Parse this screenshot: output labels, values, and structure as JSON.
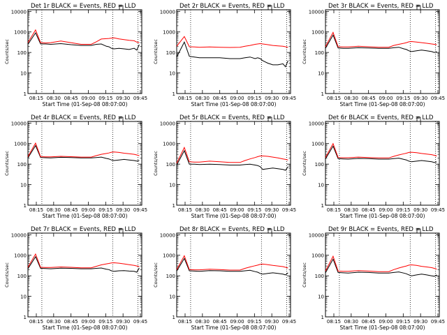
{
  "figure": {
    "xlabel": "Start Time (01-Sep-08 08:07:00)",
    "ylabel": "Counts/sec"
  },
  "colors": {
    "events": "#000000",
    "lld": "#ff0000",
    "axis": "#000000"
  },
  "chart_data": [
    {
      "type": "line",
      "title": "Det 1r BLACK = Events, RED = LLD",
      "xlabel": "Start Time (01-Sep-08 08:07:00)",
      "ylabel": "Counts/sec",
      "yscale": "log",
      "ylim": [
        1,
        12000
      ],
      "yticks": [
        "1",
        "10",
        "100",
        "1000",
        "10000"
      ],
      "xlim": [
        487,
        532
      ],
      "xticks": [
        "08:15",
        "08:30",
        "08:45",
        "09:00",
        "09:15",
        "09:30",
        "09:45"
      ],
      "x": [
        487,
        490,
        492,
        494,
        496,
        500,
        504,
        508,
        512,
        514,
        516,
        518,
        519,
        520,
        521,
        523,
        525,
        527,
        529,
        530,
        531
      ],
      "series": [
        {
          "name": "Events",
          "values": [
            250,
            900,
            260,
            260,
            250,
            270,
            240,
            220,
            220,
            250,
            260,
            200,
            190,
            160,
            150,
            160,
            150,
            140,
            160,
            130,
            240
          ]
        },
        {
          "name": "LLD",
          "values": [
            300,
            1250,
            300,
            290,
            300,
            360,
            300,
            250,
            250,
            330,
            450,
            470,
            480,
            500,
            510,
            460,
            420,
            390,
            370,
            320,
            300
          ]
        }
      ],
      "vlines": [
        492.5,
        520.5,
        530.5
      ]
    },
    {
      "type": "line",
      "title": "Det 2r BLACK = Events, RED = LLD",
      "xlabel": "Start Time (01-Sep-08 08:07:00)",
      "ylabel": "Counts/sec",
      "yscale": "log",
      "ylim": [
        1,
        12000
      ],
      "yticks": [
        "1",
        "10",
        "100",
        "1000",
        "10000"
      ],
      "xlim": [
        487,
        532
      ],
      "xticks": [
        "08:15",
        "08:30",
        "08:45",
        "09:00",
        "09:15",
        "09:30",
        "09:45"
      ],
      "x": [
        487,
        490,
        492,
        494,
        496,
        500,
        504,
        508,
        512,
        514,
        516,
        518,
        519,
        520,
        521,
        523,
        525,
        527,
        529,
        530,
        531
      ],
      "series": [
        {
          "name": "Events",
          "values": [
            60,
            320,
            65,
            60,
            55,
            55,
            55,
            50,
            50,
            55,
            60,
            50,
            55,
            50,
            40,
            30,
            25,
            25,
            28,
            20,
            40
          ]
        },
        {
          "name": "LLD",
          "values": [
            200,
            600,
            190,
            185,
            180,
            185,
            180,
            175,
            180,
            200,
            220,
            250,
            260,
            270,
            260,
            240,
            220,
            210,
            200,
            190,
            180
          ]
        }
      ],
      "vlines": [
        492.5,
        520.5,
        530.5
      ]
    },
    {
      "type": "line",
      "title": "Det 3r BLACK = Events, RED = LLD",
      "xlabel": "Start Time (01-Sep-08 08:07:00)",
      "ylabel": "Counts/sec",
      "yscale": "log",
      "ylim": [
        1,
        12000
      ],
      "yticks": [
        "1",
        "10",
        "100",
        "1000",
        "10000"
      ],
      "xlim": [
        487,
        532
      ],
      "xticks": [
        "08:15",
        "08:30",
        "08:45",
        "09:00",
        "09:15",
        "09:30",
        "09:45"
      ],
      "x": [
        487,
        490,
        492,
        494,
        496,
        500,
        504,
        508,
        512,
        514,
        516,
        518,
        519,
        520,
        521,
        523,
        525,
        527,
        529,
        530,
        531
      ],
      "series": [
        {
          "name": "Events",
          "values": [
            160,
            700,
            165,
            160,
            160,
            170,
            165,
            160,
            160,
            170,
            180,
            150,
            140,
            120,
            110,
            120,
            130,
            120,
            110,
            100,
            110
          ]
        },
        {
          "name": "LLD",
          "values": [
            190,
            950,
            190,
            185,
            185,
            200,
            190,
            180,
            180,
            220,
            250,
            280,
            300,
            330,
            340,
            320,
            300,
            280,
            260,
            250,
            240
          ]
        }
      ],
      "vlines": [
        492.5,
        520.5,
        530.5
      ]
    },
    {
      "type": "line",
      "title": "Det 4r BLACK = Events, RED = LLD",
      "xlabel": "Start Time (01-Sep-08 08:07:00)",
      "ylabel": "Counts/sec",
      "yscale": "log",
      "ylim": [
        1,
        12000
      ],
      "yticks": [
        "1",
        "10",
        "100",
        "1000",
        "10000"
      ],
      "xlim": [
        487,
        532
      ],
      "xticks": [
        "08:15",
        "08:30",
        "08:45",
        "09:00",
        "09:15",
        "09:30",
        "09:45"
      ],
      "x": [
        487,
        490,
        492,
        494,
        496,
        500,
        504,
        508,
        512,
        514,
        516,
        518,
        519,
        520,
        521,
        523,
        525,
        527,
        529,
        530,
        531
      ],
      "series": [
        {
          "name": "Events",
          "values": [
            200,
            800,
            210,
            205,
            200,
            215,
            210,
            200,
            200,
            210,
            220,
            190,
            180,
            160,
            150,
            160,
            170,
            160,
            150,
            140,
            150
          ]
        },
        {
          "name": "LLD",
          "values": [
            230,
            1050,
            230,
            225,
            225,
            240,
            230,
            220,
            220,
            260,
            300,
            330,
            350,
            380,
            390,
            370,
            340,
            320,
            300,
            280,
            260
          ]
        }
      ],
      "vlines": [
        492.5,
        520.5,
        530.5
      ]
    },
    {
      "type": "line",
      "title": "Det 5r BLACK = Events, RED = LLD",
      "xlabel": "Start Time (01-Sep-08 08:07:00)",
      "ylabel": "Counts/sec",
      "yscale": "log",
      "ylim": [
        1,
        12000
      ],
      "yticks": [
        "1",
        "10",
        "100",
        "1000",
        "10000"
      ],
      "xlim": [
        487,
        532
      ],
      "xticks": [
        "08:15",
        "08:30",
        "08:45",
        "09:00",
        "09:15",
        "09:30",
        "09:45"
      ],
      "x": [
        487,
        490,
        492,
        494,
        496,
        500,
        504,
        508,
        512,
        514,
        516,
        518,
        519,
        520,
        521,
        523,
        525,
        527,
        529,
        530,
        531
      ],
      "series": [
        {
          "name": "Events",
          "values": [
            90,
            450,
            100,
            100,
            95,
            100,
            95,
            90,
            90,
            95,
            100,
            90,
            85,
            75,
            55,
            60,
            65,
            60,
            55,
            50,
            75
          ]
        },
        {
          "name": "LLD",
          "values": [
            110,
            650,
            130,
            125,
            125,
            140,
            130,
            120,
            120,
            150,
            180,
            210,
            230,
            250,
            250,
            240,
            220,
            200,
            180,
            170,
            160
          ]
        }
      ],
      "vlines": [
        492.5,
        520.5,
        530.5
      ]
    },
    {
      "type": "line",
      "title": "Det 6r BLACK = Events, RED = LLD",
      "xlabel": "Start Time (01-Sep-08 08:07:00)",
      "ylabel": "Counts/sec",
      "yscale": "log",
      "ylim": [
        1,
        12000
      ],
      "yticks": [
        "1",
        "10",
        "100",
        "1000",
        "10000"
      ],
      "xlim": [
        487,
        532
      ],
      "xticks": [
        "08:15",
        "08:30",
        "08:45",
        "09:00",
        "09:15",
        "09:30",
        "09:45"
      ],
      "x": [
        487,
        490,
        492,
        494,
        496,
        500,
        504,
        508,
        512,
        514,
        516,
        518,
        519,
        520,
        521,
        523,
        525,
        527,
        529,
        530,
        531
      ],
      "series": [
        {
          "name": "Events",
          "values": [
            180,
            750,
            185,
            180,
            175,
            190,
            185,
            175,
            175,
            185,
            195,
            170,
            160,
            140,
            130,
            140,
            150,
            140,
            130,
            120,
            130
          ]
        },
        {
          "name": "LLD",
          "values": [
            210,
            1000,
            210,
            205,
            205,
            220,
            210,
            200,
            200,
            240,
            280,
            320,
            340,
            370,
            380,
            360,
            330,
            310,
            290,
            270,
            250
          ]
        }
      ],
      "vlines": [
        492.5,
        520.5,
        530.5
      ]
    },
    {
      "type": "line",
      "title": "Det 7r BLACK = Events, RED = LLD",
      "xlabel": "Start Time (01-Sep-08 08:07:00)",
      "ylabel": "Counts/sec",
      "yscale": "log",
      "ylim": [
        1,
        12000
      ],
      "yticks": [
        "1",
        "10",
        "100",
        "1000",
        "10000"
      ],
      "xlim": [
        487,
        532
      ],
      "xticks": [
        "08:15",
        "08:30",
        "08:45",
        "09:00",
        "09:15",
        "09:30",
        "09:45"
      ],
      "x": [
        487,
        490,
        492,
        494,
        496,
        500,
        504,
        508,
        512,
        514,
        516,
        518,
        519,
        520,
        521,
        523,
        525,
        527,
        529,
        530,
        531
      ],
      "series": [
        {
          "name": "Events",
          "values": [
            220,
            850,
            230,
            225,
            220,
            235,
            230,
            220,
            220,
            230,
            240,
            210,
            200,
            175,
            165,
            175,
            180,
            170,
            165,
            150,
            240
          ]
        },
        {
          "name": "LLD",
          "values": [
            260,
            1150,
            260,
            255,
            255,
            270,
            260,
            245,
            245,
            290,
            340,
            380,
            400,
            420,
            430,
            410,
            380,
            350,
            320,
            300,
            280
          ]
        }
      ],
      "vlines": [
        492.5,
        520.5,
        530.5
      ]
    },
    {
      "type": "line",
      "title": "Det 8r BLACK = Events, RED = LLD",
      "xlabel": "Start Time (01-Sep-08 08:07:00)",
      "ylabel": "Counts/sec",
      "yscale": "log",
      "ylim": [
        1,
        12000
      ],
      "yticks": [
        "1",
        "10",
        "100",
        "1000",
        "10000"
      ],
      "xlim": [
        487,
        532
      ],
      "xticks": [
        "08:15",
        "08:30",
        "08:45",
        "09:00",
        "09:15",
        "09:30",
        "09:45"
      ],
      "x": [
        487,
        490,
        492,
        494,
        496,
        500,
        504,
        508,
        512,
        514,
        516,
        518,
        519,
        520,
        521,
        523,
        525,
        527,
        529,
        530,
        531
      ],
      "series": [
        {
          "name": "Events",
          "values": [
            170,
            700,
            175,
            170,
            165,
            180,
            175,
            165,
            165,
            175,
            185,
            160,
            150,
            130,
            120,
            130,
            140,
            130,
            120,
            110,
            140
          ]
        },
        {
          "name": "LLD",
          "values": [
            200,
            950,
            200,
            195,
            195,
            210,
            200,
            190,
            190,
            230,
            270,
            310,
            330,
            360,
            370,
            350,
            320,
            300,
            280,
            260,
            240
          ]
        }
      ],
      "vlines": [
        492.5,
        520.5,
        530.5
      ]
    },
    {
      "type": "line",
      "title": "Det 9r BLACK = Events, RED = LLD",
      "xlabel": "Start Time (01-Sep-08 08:07:00)",
      "ylabel": "Counts/sec",
      "yscale": "log",
      "ylim": [
        1,
        12000
      ],
      "yticks": [
        "1",
        "10",
        "100",
        "1000",
        "10000"
      ],
      "xlim": [
        487,
        532
      ],
      "xticks": [
        "08:15",
        "08:30",
        "08:45",
        "09:00",
        "09:15",
        "09:30",
        "09:45"
      ],
      "x": [
        487,
        490,
        492,
        494,
        496,
        500,
        504,
        508,
        512,
        514,
        516,
        518,
        519,
        520,
        521,
        523,
        525,
        527,
        529,
        530,
        531
      ],
      "series": [
        {
          "name": "Events",
          "values": [
            140,
            650,
            145,
            140,
            135,
            150,
            145,
            135,
            135,
            145,
            155,
            135,
            125,
            110,
            100,
            110,
            120,
            110,
            100,
            95,
            110
          ]
        },
        {
          "name": "LLD",
          "values": [
            170,
            900,
            170,
            165,
            165,
            180,
            170,
            160,
            160,
            200,
            240,
            280,
            300,
            330,
            340,
            320,
            290,
            270,
            250,
            230,
            210
          ]
        }
      ],
      "vlines": [
        492.5,
        520.5,
        530.5
      ]
    }
  ]
}
